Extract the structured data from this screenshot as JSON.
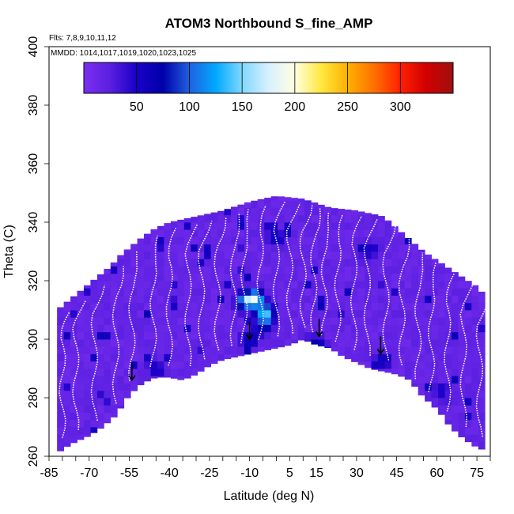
{
  "chart_data": {
    "type": "heatmap",
    "title": "ATOM3 Northbound S_fine_AMP",
    "note_flights": "Flts: 7,8,9,10,11,12",
    "note_dates": "MMDD: 1014,1017,1019,1020,1023,1025",
    "xlabel": "Latitude (deg N)",
    "ylabel": "Theta (C)",
    "xlim": [
      -85,
      80
    ],
    "ylim": [
      260,
      400
    ],
    "x_ticks": [
      -85,
      -70,
      -55,
      -40,
      -25,
      -10,
      5,
      15,
      30,
      45,
      60,
      75
    ],
    "y_ticks": [
      260,
      280,
      300,
      320,
      340,
      360,
      380,
      400
    ],
    "colorbar": {
      "range": [
        0,
        350
      ],
      "ticks": [
        50,
        100,
        150,
        200,
        250,
        300
      ],
      "colors": [
        "#7b2ff0",
        "#5a1fe0",
        "#1a00c8",
        "#0000aa",
        "#2060e0",
        "#00a8ff",
        "#80d8ff",
        "#d8f0ff",
        "#ffffe0",
        "#ffe840",
        "#ffb000",
        "#ff7000",
        "#ff2000",
        "#d00000",
        "#a01010"
      ]
    },
    "background_value": 10,
    "tropopause_boundary": [
      [
        -82,
        261
      ],
      [
        -79,
        263
      ],
      [
        -75,
        265
      ],
      [
        -70,
        267
      ],
      [
        -65,
        270
      ],
      [
        -60,
        274
      ],
      [
        -55,
        281
      ],
      [
        -50,
        285
      ],
      [
        -45,
        287
      ],
      [
        -40,
        287
      ],
      [
        -35,
        286
      ],
      [
        -30,
        288
      ],
      [
        -25,
        291
      ],
      [
        -20,
        293
      ],
      [
        -15,
        294
      ],
      [
        -10,
        295
      ],
      [
        -5,
        296
      ],
      [
        0,
        297
      ],
      [
        5,
        298
      ],
      [
        10,
        300
      ],
      [
        15,
        298
      ],
      [
        20,
        297
      ],
      [
        25,
        294
      ],
      [
        30,
        292
      ],
      [
        35,
        290
      ],
      [
        40,
        289
      ],
      [
        45,
        288
      ],
      [
        50,
        286
      ],
      [
        55,
        280
      ],
      [
        58,
        278
      ],
      [
        60,
        276
      ],
      [
        62,
        274
      ],
      [
        65,
        270
      ],
      [
        70,
        266
      ],
      [
        75,
        263
      ],
      [
        78,
        262
      ]
    ],
    "top_boundary": [
      [
        -82,
        310
      ],
      [
        -78,
        313
      ],
      [
        -74,
        316
      ],
      [
        -70,
        319
      ],
      [
        -66,
        322
      ],
      [
        -62,
        325
      ],
      [
        -58,
        329
      ],
      [
        -54,
        332
      ],
      [
        -50,
        335
      ],
      [
        -45,
        338
      ],
      [
        -40,
        340
      ],
      [
        -30,
        342
      ],
      [
        -20,
        344
      ],
      [
        -10,
        347
      ],
      [
        0,
        349
      ],
      [
        10,
        348
      ],
      [
        20,
        345
      ],
      [
        30,
        344
      ],
      [
        40,
        342
      ],
      [
        45,
        338
      ],
      [
        50,
        334
      ],
      [
        55,
        330
      ],
      [
        60,
        327
      ],
      [
        65,
        324
      ],
      [
        70,
        321
      ],
      [
        75,
        318
      ],
      [
        78,
        315
      ]
    ],
    "hotspots": [
      {
        "lat": -8,
        "theta": 314,
        "value": 150
      },
      {
        "lat": -4,
        "theta": 309,
        "value": 120
      },
      {
        "lat": -12,
        "theta": 313,
        "value": 100
      },
      {
        "lat": -5,
        "theta": 305,
        "value": 60
      },
      {
        "lat": 15,
        "theta": 298,
        "value": 70
      },
      {
        "lat": 0,
        "theta": 335,
        "value": 45
      },
      {
        "lat": 40,
        "theta": 293,
        "value": 45
      },
      {
        "lat": -45,
        "theta": 290,
        "value": 40
      },
      {
        "lat": 62,
        "theta": 282,
        "value": 35
      },
      {
        "lat": 35,
        "theta": 330,
        "value": 40
      },
      {
        "lat": -10,
        "theta": 300,
        "value": 50
      }
    ],
    "arrows": [
      {
        "lat": -54,
        "theta": 286
      },
      {
        "lat": -10,
        "theta": 300
      },
      {
        "lat": 16,
        "theta": 301
      },
      {
        "lat": 39,
        "theta": 295
      }
    ]
  }
}
